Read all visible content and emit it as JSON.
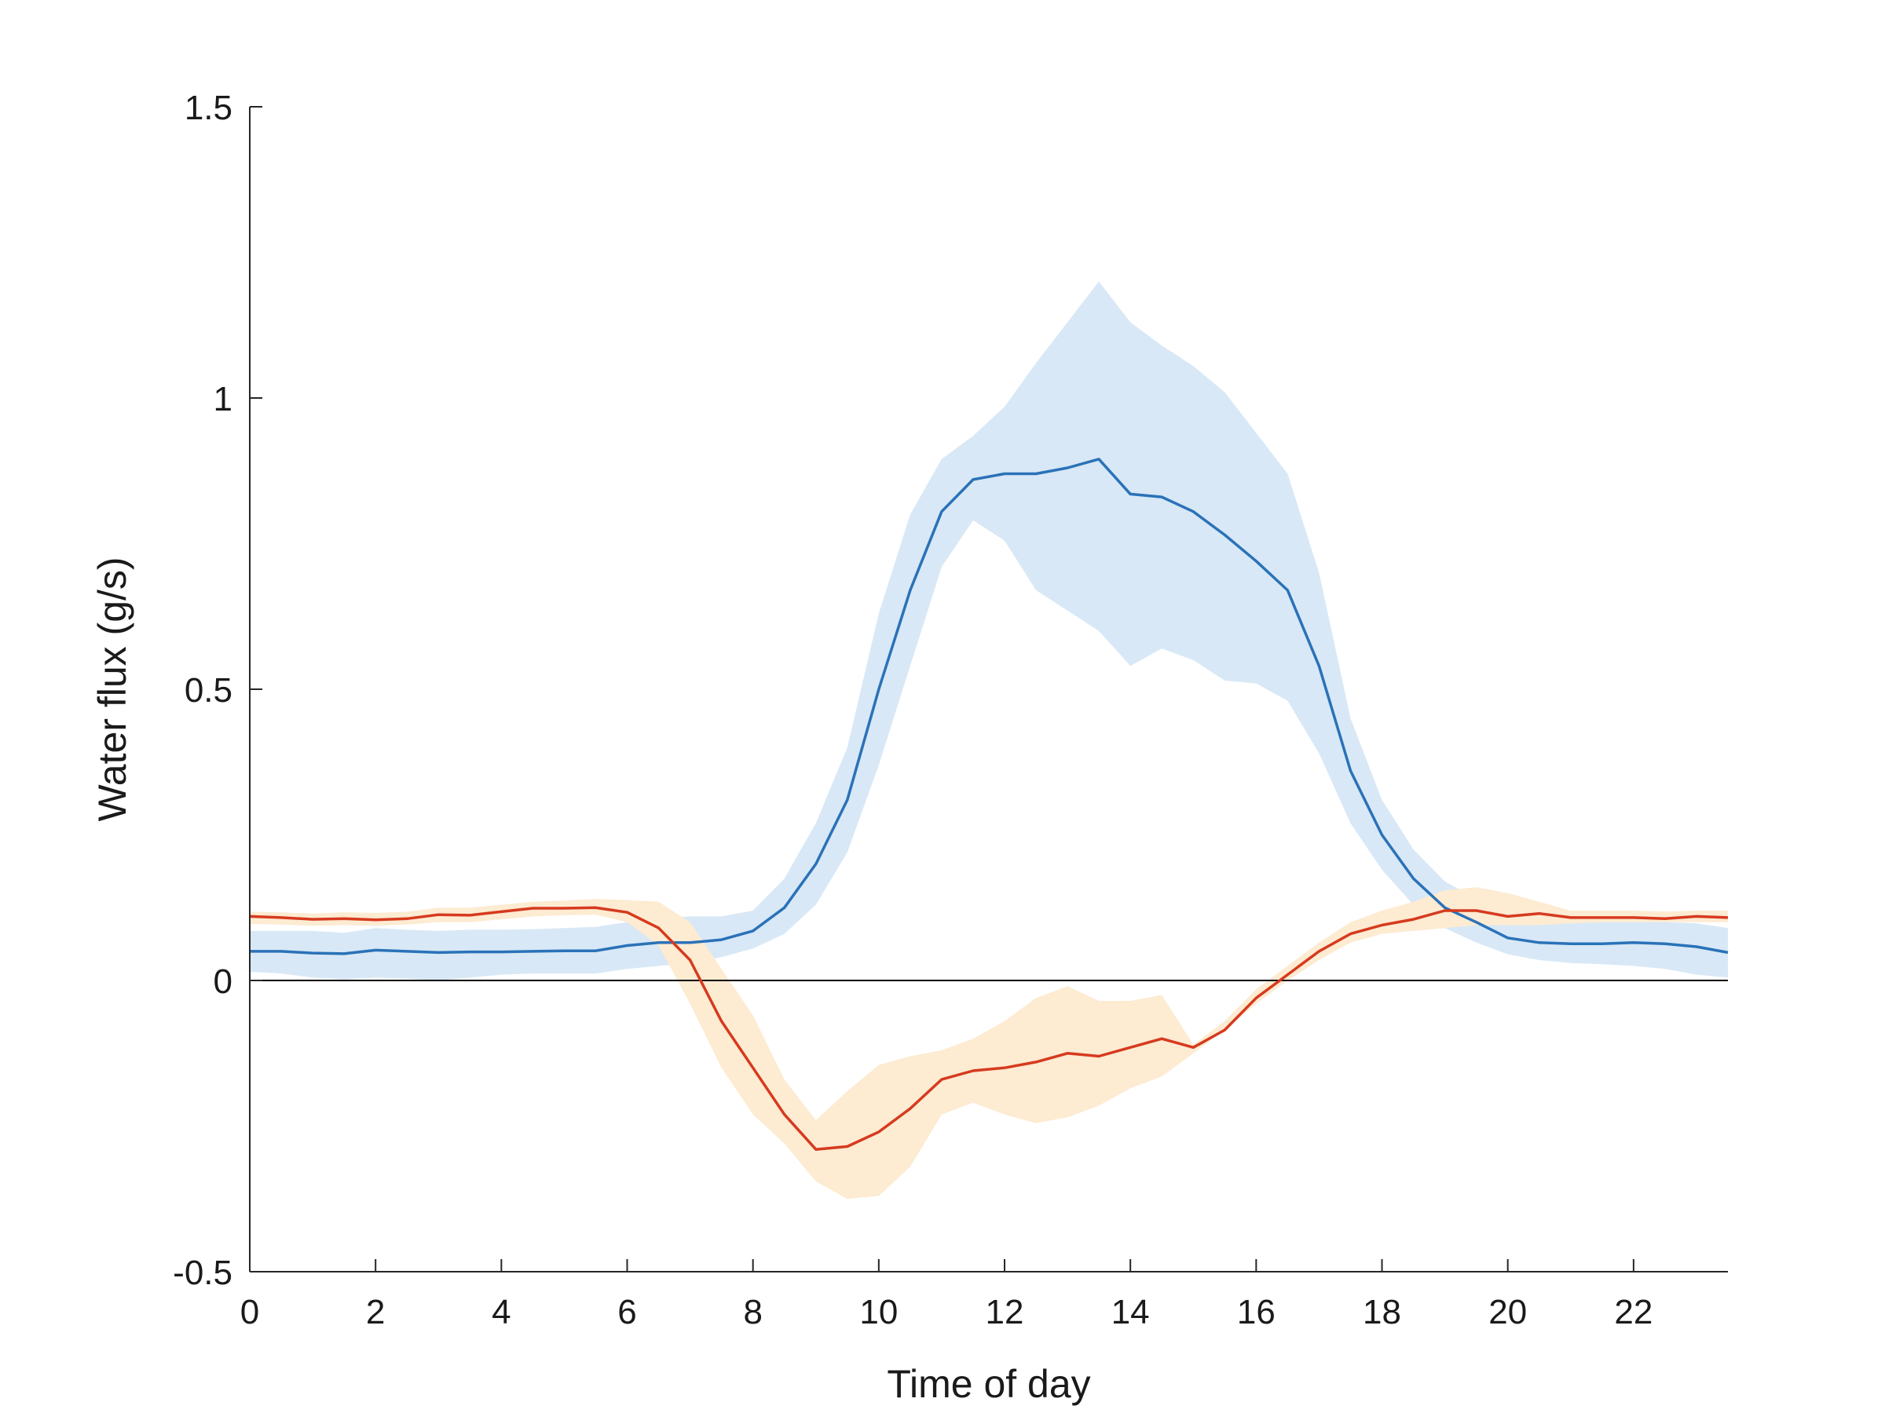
{
  "chart_data": {
    "type": "line",
    "title": "",
    "xlabel": "Time of day",
    "ylabel": "Water flux (g/s)",
    "xlim": [
      0,
      23.5
    ],
    "ylim": [
      -0.5,
      1.5
    ],
    "xticks": [
      0,
      2,
      4,
      6,
      8,
      10,
      12,
      14,
      16,
      18,
      20,
      22
    ],
    "yticks": [
      -0.5,
      0,
      0.5,
      1,
      1.5
    ],
    "ytick_labels": [
      "-0.5",
      "0",
      "0.5",
      "1",
      "1.5"
    ],
    "grid": false,
    "zero_line": true,
    "x": [
      0,
      0.5,
      1,
      1.5,
      2,
      2.5,
      3,
      3.5,
      4,
      4.5,
      5,
      5.5,
      6,
      6.5,
      7,
      7.5,
      8,
      8.5,
      9,
      9.5,
      10,
      10.5,
      11,
      11.5,
      12,
      12.5,
      13,
      13.5,
      14,
      14.5,
      15,
      15.5,
      16,
      16.5,
      17,
      17.5,
      18,
      18.5,
      19,
      19.5,
      20,
      20.5,
      21,
      21.5,
      22,
      22.5,
      23,
      23.5
    ],
    "series": [
      {
        "color": "#2a72b8",
        "band_color": "#d8e8f6",
        "values": [
          0.05,
          0.05,
          0.047,
          0.046,
          0.052,
          0.05,
          0.048,
          0.049,
          0.049,
          0.05,
          0.051,
          0.051,
          0.06,
          0.065,
          0.065,
          0.07,
          0.085,
          0.125,
          0.2,
          0.31,
          0.5,
          0.67,
          0.805,
          0.86,
          0.87,
          0.87,
          0.88,
          0.895,
          0.835,
          0.83,
          0.805,
          0.765,
          0.72,
          0.67,
          0.54,
          0.36,
          0.25,
          0.175,
          0.125,
          0.1,
          0.073,
          0.065,
          0.063,
          0.063,
          0.065,
          0.063,
          0.058,
          0.048
        ],
        "upper": [
          0.085,
          0.085,
          0.085,
          0.082,
          0.09,
          0.087,
          0.085,
          0.087,
          0.087,
          0.088,
          0.09,
          0.092,
          0.1,
          0.105,
          0.11,
          0.11,
          0.12,
          0.175,
          0.27,
          0.4,
          0.63,
          0.8,
          0.895,
          0.935,
          0.985,
          1.06,
          1.13,
          1.2,
          1.13,
          1.09,
          1.055,
          1.01,
          0.94,
          0.87,
          0.7,
          0.45,
          0.31,
          0.225,
          0.17,
          0.14,
          0.11,
          0.1,
          0.098,
          0.1,
          0.1,
          0.1,
          0.098,
          0.09
        ],
        "lower": [
          0.015,
          0.012,
          0.005,
          0.002,
          0.005,
          0.003,
          0.0,
          0.005,
          0.01,
          0.012,
          0.012,
          0.012,
          0.02,
          0.025,
          0.03,
          0.04,
          0.055,
          0.08,
          0.13,
          0.22,
          0.37,
          0.54,
          0.71,
          0.79,
          0.755,
          0.67,
          0.635,
          0.6,
          0.54,
          0.57,
          0.55,
          0.515,
          0.51,
          0.48,
          0.39,
          0.27,
          0.19,
          0.13,
          0.09,
          0.065,
          0.045,
          0.035,
          0.03,
          0.028,
          0.025,
          0.02,
          0.01,
          0.005
        ]
      },
      {
        "color": "#d63a1e",
        "band_color": "#fdebd2",
        "values": [
          0.11,
          0.108,
          0.105,
          0.106,
          0.104,
          0.106,
          0.113,
          0.112,
          0.118,
          0.124,
          0.124,
          0.125,
          0.117,
          0.09,
          0.035,
          -0.07,
          -0.15,
          -0.23,
          -0.29,
          -0.285,
          -0.26,
          -0.22,
          -0.17,
          -0.155,
          -0.15,
          -0.14,
          -0.125,
          -0.13,
          -0.115,
          -0.1,
          -0.115,
          -0.085,
          -0.03,
          0.01,
          0.05,
          0.08,
          0.095,
          0.105,
          0.12,
          0.12,
          0.11,
          0.115,
          0.108,
          0.108,
          0.108,
          0.106,
          0.11,
          0.108
        ],
        "upper": [
          0.118,
          0.117,
          0.115,
          0.117,
          0.116,
          0.118,
          0.125,
          0.125,
          0.13,
          0.135,
          0.137,
          0.14,
          0.138,
          0.135,
          0.1,
          0.02,
          -0.06,
          -0.17,
          -0.24,
          -0.19,
          -0.145,
          -0.13,
          -0.12,
          -0.1,
          -0.07,
          -0.03,
          -0.01,
          -0.035,
          -0.035,
          -0.025,
          -0.11,
          -0.07,
          -0.015,
          0.025,
          0.065,
          0.1,
          0.12,
          0.135,
          0.155,
          0.16,
          0.15,
          0.135,
          0.12,
          0.12,
          0.12,
          0.118,
          0.12,
          0.12
        ],
        "lower": [
          0.097,
          0.096,
          0.094,
          0.095,
          0.094,
          0.096,
          0.1,
          0.1,
          0.105,
          0.11,
          0.112,
          0.113,
          0.1,
          0.06,
          -0.04,
          -0.15,
          -0.23,
          -0.28,
          -0.345,
          -0.375,
          -0.37,
          -0.32,
          -0.23,
          -0.21,
          -0.23,
          -0.245,
          -0.235,
          -0.215,
          -0.185,
          -0.165,
          -0.125,
          -0.085,
          -0.04,
          0.0,
          0.035,
          0.065,
          0.08,
          0.085,
          0.09,
          0.095,
          0.095,
          0.095,
          0.098,
          0.1,
          0.1,
          0.1,
          0.1,
          0.1
        ]
      }
    ]
  }
}
